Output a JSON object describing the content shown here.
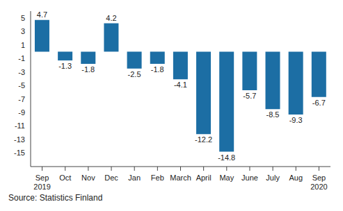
{
  "chart_data": {
    "type": "bar",
    "categories": [
      "Sep 2019",
      "Oct",
      "Nov",
      "Dec",
      "Jan",
      "Feb",
      "March",
      "April",
      "May",
      "June",
      "July",
      "Aug",
      "Sep 2020"
    ],
    "values": [
      4.7,
      -1.3,
      -1.8,
      4.2,
      -2.5,
      -1.8,
      -4.1,
      -12.2,
      -14.8,
      -5.7,
      -8.5,
      -9.3,
      -6.7
    ],
    "color": "#1c6ea4",
    "ylim": [
      -17,
      6
    ],
    "yticks": [
      5,
      3,
      1,
      -1,
      -3,
      -5,
      -7,
      -9,
      -11,
      -13,
      -15
    ],
    "grid": false,
    "data_labels": true,
    "source": "Source: Statistics Finland"
  }
}
